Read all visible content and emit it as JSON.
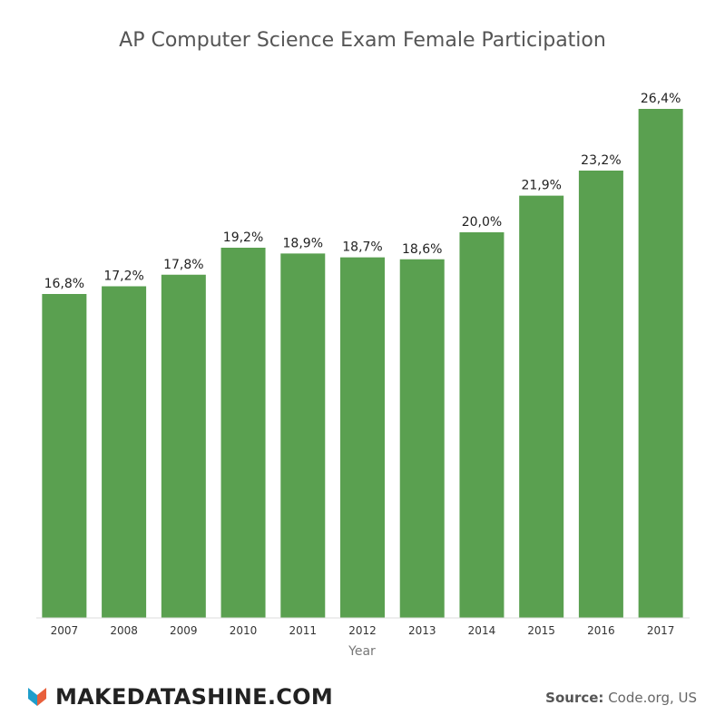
{
  "chart_data": {
    "type": "bar",
    "title": "AP Computer Science Exam Female Participation",
    "xlabel": "Year",
    "ylabel": "",
    "categories": [
      "2007",
      "2008",
      "2009",
      "2010",
      "2011",
      "2012",
      "2013",
      "2014",
      "2015",
      "2016",
      "2017"
    ],
    "values": [
      16.8,
      17.2,
      17.8,
      19.2,
      18.9,
      18.7,
      18.6,
      20.0,
      21.9,
      23.2,
      26.4
    ],
    "data_labels": [
      "16,8%",
      "17,2%",
      "17,8%",
      "19,2%",
      "18,9%",
      "18,7%",
      "18,6%",
      "20,0%",
      "21,9%",
      "23,2%",
      "26,4%"
    ],
    "ylim": [
      0,
      26.4
    ],
    "grid": false,
    "bar_color": "#5aa050"
  },
  "footer": {
    "brand": "MAKEDATASHINE.COM",
    "source_label": "Source:",
    "source_value": " Code.org, US",
    "logo_colors": [
      "#1f9ecb",
      "#e8603c"
    ]
  }
}
